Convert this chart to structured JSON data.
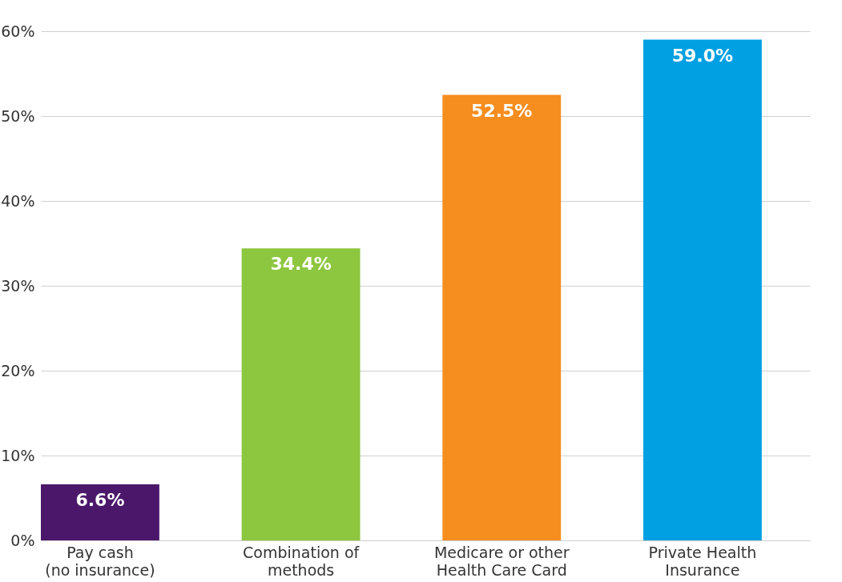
{
  "chart_data": {
    "type": "bar",
    "categories": [
      "Pay cash\n(no insurance)",
      "Combination of\nmethods",
      "Medicare or other\nHealth Care Card",
      "Private Health\nInsurance"
    ],
    "values": [
      6.6,
      34.4,
      52.5,
      59.0
    ],
    "colors": [
      "#4b176b",
      "#8dc63f",
      "#f68d1f",
      "#00a0e2"
    ],
    "value_labels": [
      "6.6%",
      "34.4%",
      "52.5%",
      "59.0%"
    ],
    "ylim": [
      0,
      60
    ],
    "yticks": [
      {
        "value": 0,
        "label": "0%"
      },
      {
        "value": 10,
        "label": "10%"
      },
      {
        "value": 20,
        "label": "20%"
      },
      {
        "value": 30,
        "label": "30%"
      },
      {
        "value": 40,
        "label": "40%"
      },
      {
        "value": 50,
        "label": "50%"
      },
      {
        "value": 60,
        "label": "60%"
      }
    ],
    "grid": "y",
    "legend": false
  }
}
